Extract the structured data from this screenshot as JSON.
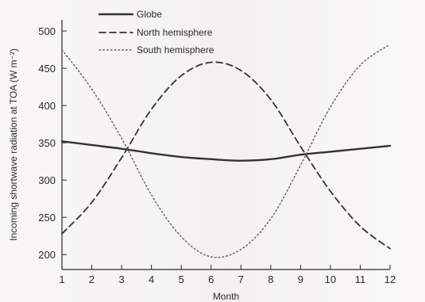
{
  "chart_data": {
    "type": "line",
    "xlabel": "Month",
    "ylabel": "Incoming shortwave radiation at TOA (W m⁻²)",
    "xlim": [
      1,
      12
    ],
    "ylim": [
      180,
      515
    ],
    "grid": false,
    "legend": "top-left",
    "x": [
      1,
      2,
      3,
      4,
      5,
      6,
      7,
      8,
      9,
      10,
      11,
      12
    ],
    "xticks": [
      1,
      2,
      3,
      4,
      5,
      6,
      7,
      8,
      9,
      10,
      11,
      12
    ],
    "yticks": [
      200,
      250,
      300,
      350,
      400,
      450,
      500
    ],
    "series": [
      {
        "name": "Globe",
        "style": "solid",
        "color": "#333333",
        "values": [
          352,
          347,
          342,
          336,
          331,
          328,
          326,
          328,
          334,
          338,
          342,
          346
        ]
      },
      {
        "name": "North hemisphere",
        "style": "dashed",
        "color": "#333333",
        "values": [
          228,
          270,
          330,
          395,
          440,
          458,
          447,
          408,
          345,
          285,
          238,
          208
        ]
      },
      {
        "name": "South hemisphere",
        "style": "dotted",
        "color": "#666666",
        "values": [
          475,
          422,
          356,
          280,
          224,
          197,
          207,
          248,
          320,
          398,
          454,
          482
        ]
      }
    ]
  }
}
